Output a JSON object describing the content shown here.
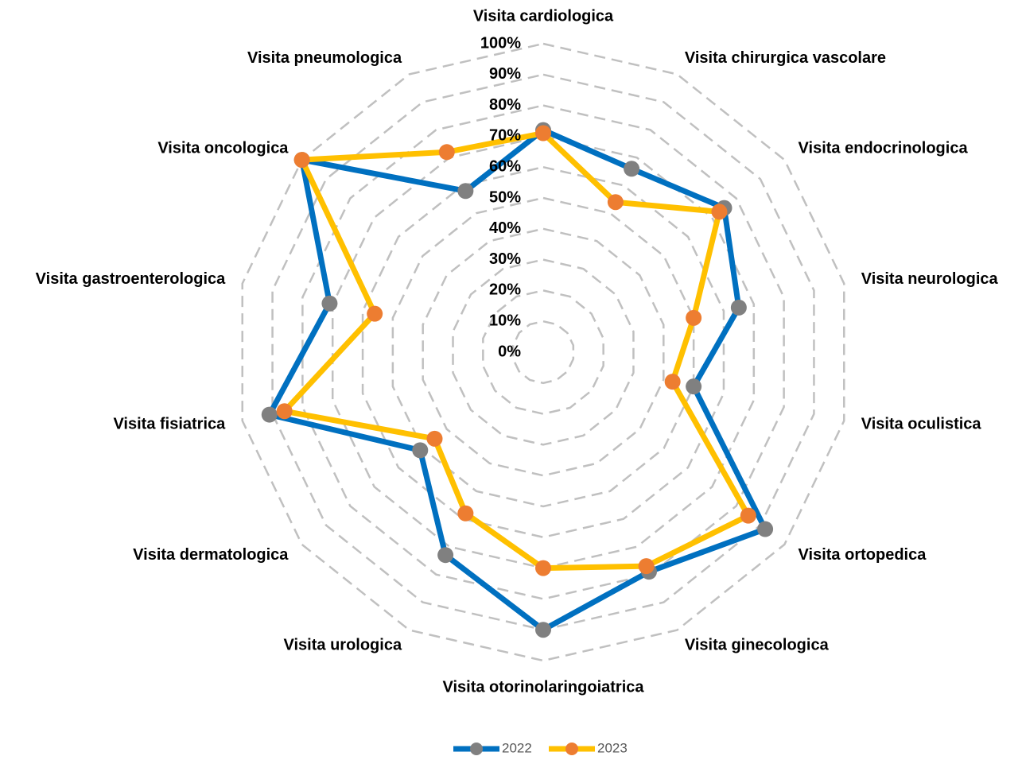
{
  "chart_data": {
    "type": "radar",
    "categories": [
      "Visita cardiologica",
      "Visita chirurgica vascolare",
      "Visita endocrinologica",
      "Visita neurologica",
      "Visita oculistica",
      "Visita ortopedica",
      "Visita ginecologica",
      "Visita otorinolaringoiatrica",
      "Visita urologica",
      "Visita dermatologica",
      "Visita fisiatrica",
      "Visita gastroenterologica",
      "Visita oncologica",
      "Visita pneumologica"
    ],
    "series": [
      {
        "name": "2022",
        "color": "#0070c0",
        "marker_color": "#808080",
        "values": [
          72,
          66,
          75,
          65,
          50,
          92,
          79,
          90,
          73,
          51,
          91,
          71,
          100,
          58
        ]
      },
      {
        "name": "2023",
        "color": "#ffc000",
        "marker_color": "#ed7d31",
        "values": [
          71,
          54,
          73,
          50,
          43,
          85,
          77,
          70,
          58,
          45,
          86,
          56,
          100,
          72
        ]
      }
    ],
    "ylim": [
      0,
      100
    ],
    "yticks": [
      {
        "value": 0,
        "label": "0%"
      },
      {
        "value": 10,
        "label": "10%"
      },
      {
        "value": 20,
        "label": "20%"
      },
      {
        "value": 30,
        "label": "30%"
      },
      {
        "value": 40,
        "label": "40%"
      },
      {
        "value": 50,
        "label": "50%"
      },
      {
        "value": 60,
        "label": "60%"
      },
      {
        "value": 70,
        "label": "70%"
      },
      {
        "value": 80,
        "label": "80%"
      },
      {
        "value": 90,
        "label": "90%"
      },
      {
        "value": 100,
        "label": "100%"
      }
    ],
    "grid": true,
    "legend": "bottom"
  }
}
